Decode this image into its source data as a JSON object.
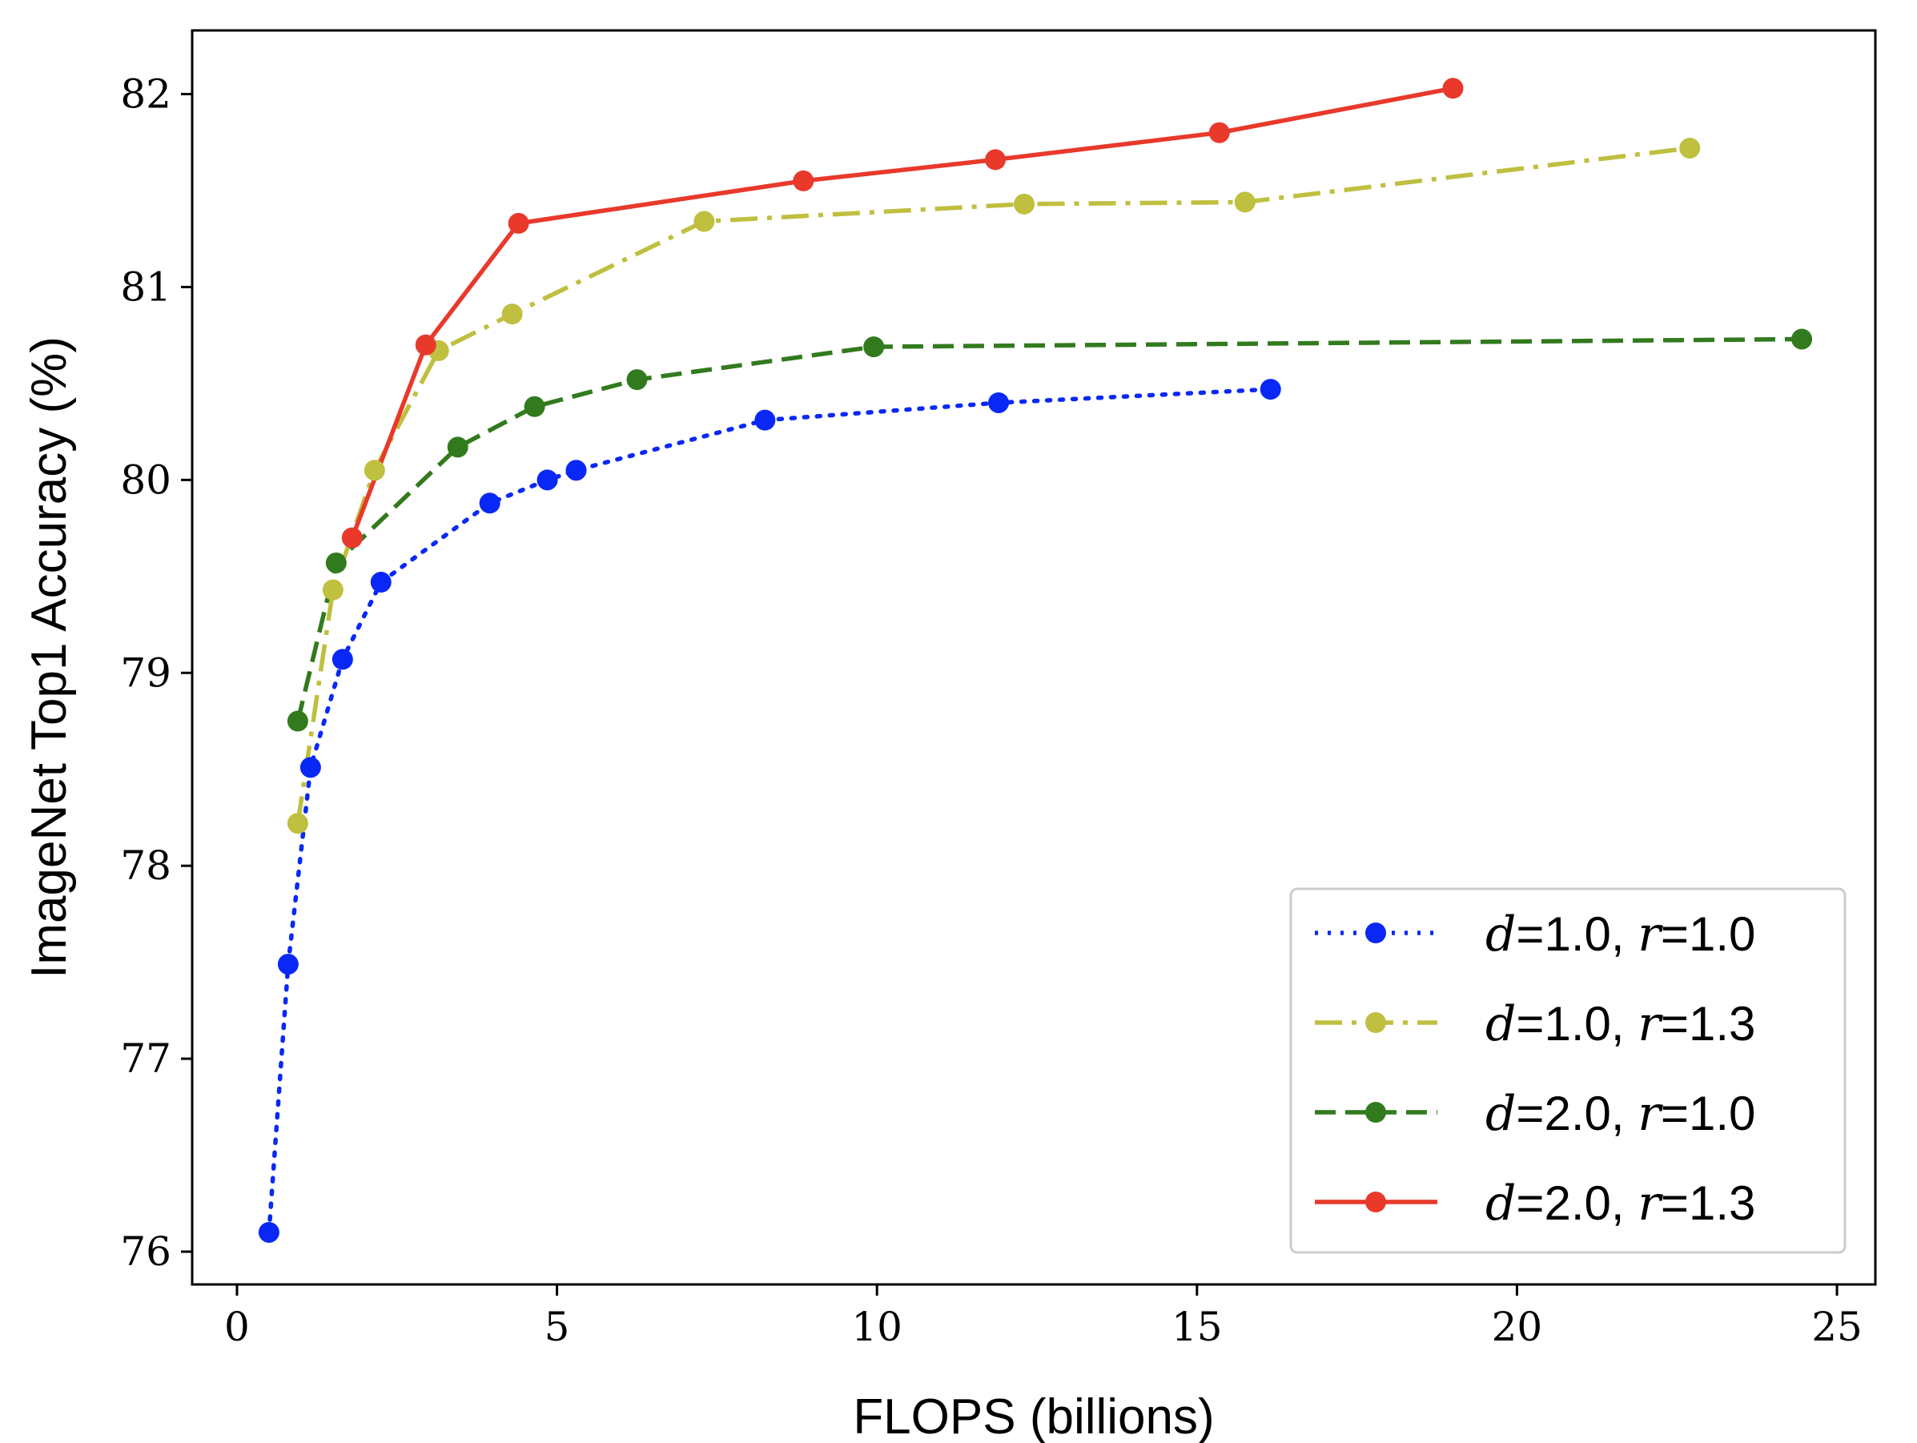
{
  "chart_data": {
    "type": "line",
    "title": "",
    "xlabel": "FLOPS (billions)",
    "ylabel": "ImageNet Top1 Accuracy (%)",
    "xlim": [
      -0.7,
      25.6
    ],
    "ylim": [
      75.83,
      82.33
    ],
    "xticks": [
      0,
      5,
      10,
      15,
      20,
      25
    ],
    "yticks": [
      76,
      77,
      78,
      79,
      80,
      81,
      82
    ],
    "xtick_labels": [
      "0",
      "5",
      "10",
      "15",
      "20",
      "25"
    ],
    "ytick_labels": [
      "76",
      "77",
      "78",
      "79",
      "80",
      "81",
      "82"
    ],
    "grid": false,
    "legend_position": "lower-right",
    "series": [
      {
        "name_prefix": "d",
        "name_mid": "=1.0, ",
        "name_var": "r",
        "name_suffix": "=1.0",
        "color": "#0a28f5",
        "linestyle": "dotted",
        "x": [
          0.5,
          0.8,
          1.15,
          1.65,
          2.25,
          3.95,
          4.85,
          5.3,
          8.25,
          11.9,
          16.15
        ],
        "y": [
          76.1,
          77.49,
          78.51,
          79.07,
          79.47,
          79.88,
          80.0,
          80.05,
          80.31,
          80.4,
          80.47
        ]
      },
      {
        "name_prefix": "d",
        "name_mid": "=1.0, ",
        "name_var": "r",
        "name_suffix": "=1.3",
        "color": "#bfbf40",
        "linestyle": "dashdot",
        "x": [
          0.95,
          1.5,
          2.15,
          3.15,
          4.3,
          7.3,
          12.3,
          15.75,
          22.7
        ],
        "y": [
          78.22,
          79.43,
          80.05,
          80.67,
          80.86,
          81.34,
          81.43,
          81.44,
          81.72
        ]
      },
      {
        "name_prefix": "d",
        "name_mid": "=2.0, ",
        "name_var": "r",
        "name_suffix": "=1.0",
        "color": "#327a1e",
        "linestyle": "dashed",
        "x": [
          0.95,
          1.55,
          3.45,
          4.65,
          6.25,
          9.95,
          24.45
        ],
        "y": [
          78.75,
          79.57,
          80.17,
          80.38,
          80.52,
          80.69,
          80.73
        ]
      },
      {
        "name_prefix": "d",
        "name_mid": "=2.0, ",
        "name_var": "r",
        "name_suffix": "=1.3",
        "color": "#e8392b",
        "linestyle": "solid",
        "x": [
          1.8,
          2.95,
          4.4,
          8.85,
          11.85,
          15.35,
          19.0
        ],
        "y": [
          79.7,
          80.7,
          81.33,
          81.55,
          81.66,
          81.8,
          82.03
        ]
      }
    ]
  }
}
